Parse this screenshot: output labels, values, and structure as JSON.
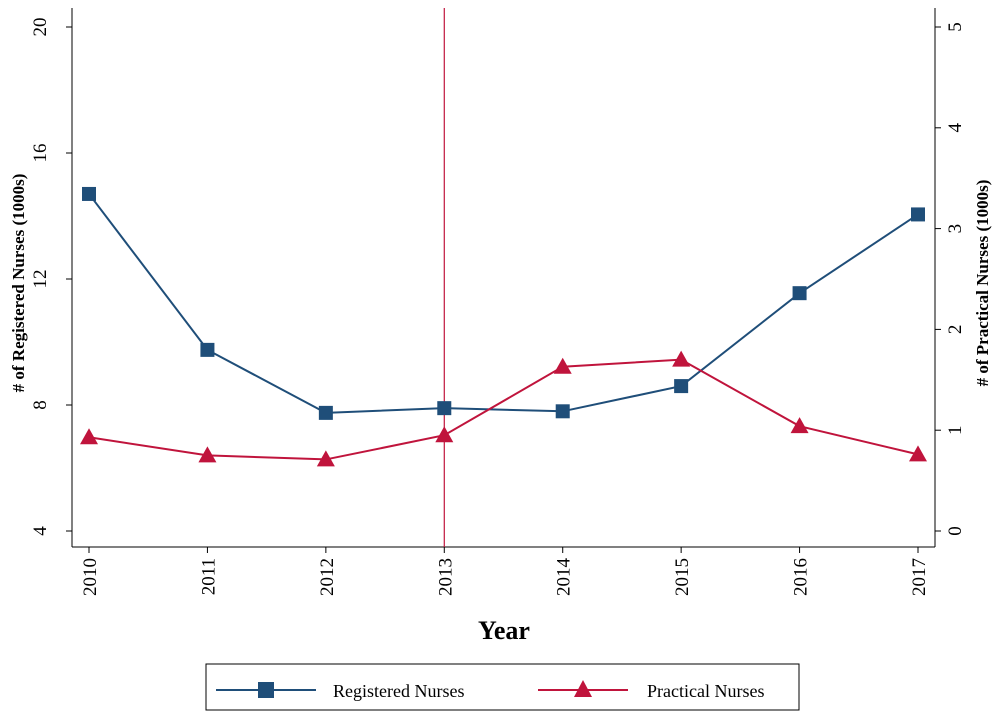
{
  "chart_data": {
    "type": "line",
    "x": [
      "2010",
      "2011",
      "2012",
      "2013",
      "2014",
      "2015",
      "2016",
      "2017"
    ],
    "xlabel": "Year",
    "ylabel_left": "# of Registered Nurses  (1000s)",
    "ylabel_right": "# of Practical Nurses (1000s)",
    "ylim_left": [
      4,
      20
    ],
    "ylim_right": [
      0,
      5
    ],
    "yticks_left": [
      "4",
      "8",
      "12",
      "16",
      "20"
    ],
    "yticks_right": [
      "0",
      "1",
      "2",
      "3",
      "4",
      "5"
    ],
    "vline_x": "2013",
    "grid": false,
    "legend_position": "bottom",
    "series": [
      {
        "name": "Registered Nurses",
        "axis": "left",
        "marker": "square",
        "color": "#1f4e79",
        "values": [
          14.7,
          9.75,
          7.75,
          7.9,
          7.8,
          8.6,
          11.55,
          14.05
        ]
      },
      {
        "name": "Practical Nurses",
        "axis": "right",
        "marker": "triangle",
        "color": "#c0143c",
        "values": [
          0.93,
          0.75,
          0.71,
          0.95,
          1.63,
          1.7,
          1.04,
          0.76
        ]
      }
    ]
  }
}
